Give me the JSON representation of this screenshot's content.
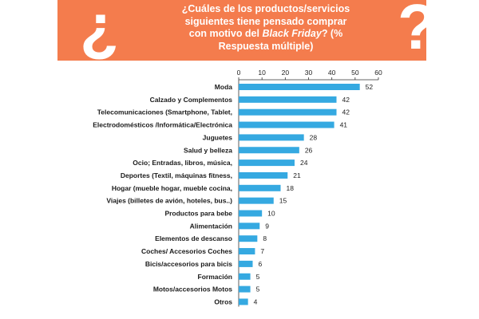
{
  "header": {
    "open_mark": "¿",
    "close_mark": "?",
    "title_line1": "¿Cuáles de los productos/servicios",
    "title_line2": "siguientes tiene pensado comprar",
    "title_line3_pre": "con motivo del ",
    "title_line3_em": "Black Friday",
    "title_line3_post": "? (%",
    "title_line4": "Respuesta múltiple)",
    "color": "#f47c4d"
  },
  "chart_data": {
    "type": "bar",
    "orientation": "horizontal",
    "categories": [
      "Moda",
      "Calzado y Complementos",
      "Telecomunicaciones (Smartphone, Tablet,",
      "Electrodomésticos /Informática/Electrónica",
      "Juguetes",
      "Salud y belleza",
      "Ocio; Entradas, libros, música,",
      "Deportes (Textil, máquinas fitness,",
      "Hogar (mueble hogar, mueble cocina,",
      "Viajes (billetes de avión, hoteles, bus..)",
      "Productos para bebe",
      "Alimentación",
      "Elementos de descanso",
      "Coches/ Accesorios Coches",
      "Bicis/accesorios para bicis",
      "Formación",
      "Motos/accesorios Motos",
      "Otros"
    ],
    "values": [
      52,
      42,
      42,
      41,
      28,
      26,
      24,
      21,
      18,
      15,
      10,
      9,
      8,
      7,
      6,
      5,
      5,
      4
    ],
    "xlim": [
      0,
      60
    ],
    "xticks": [
      0,
      10,
      20,
      30,
      40,
      50,
      60
    ],
    "xaxis_position": "top",
    "grid": false,
    "legend": "none",
    "bar_color": "#35a9e1"
  }
}
